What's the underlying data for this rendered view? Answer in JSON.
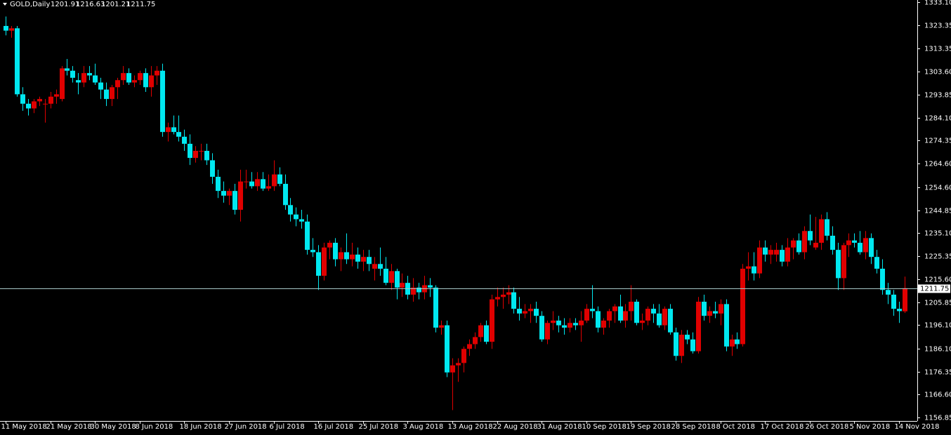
{
  "chart_data": {
    "type": "candlestick",
    "title": "GOLD,Daily",
    "up_color": "#e00000",
    "down_color": "#00e8f0",
    "price_line_color": "#a8c8c8",
    "ylim": [
      1334.0,
      1156.0
    ],
    "yticks": [
      {
        "value": 1333.1,
        "label": "1333.10"
      },
      1323.35,
      1313.35,
      {
        "value": 1303.6,
        "label": "1303.60"
      },
      1293.85,
      {
        "value": 1284.1,
        "label": "1284.10"
      },
      1274.35,
      {
        "value": 1264.6,
        "label": "1264.60"
      },
      {
        "value": 1254.6,
        "label": "1254.60"
      },
      1244.85,
      {
        "value": 1235.1,
        "label": "1235.10"
      },
      1225.35,
      {
        "value": 1215.6,
        "label": "1215.60"
      },
      1205.85,
      {
        "value": 1196.1,
        "label": "1196.10"
      },
      {
        "value": 1186.1,
        "label": "1186.10"
      },
      1176.35,
      {
        "value": 1166.6,
        "label": "1166.60"
      },
      1156.85
    ],
    "categories": [
      "11 May 2018",
      null,
      null,
      null,
      null,
      null,
      null,
      null,
      "21 May 2018",
      null,
      null,
      null,
      null,
      null,
      null,
      null,
      "30 May 2018",
      null,
      null,
      null,
      null,
      null,
      null,
      null,
      "8 Jun 2018",
      null,
      null,
      null,
      null,
      null,
      null,
      null,
      "18 Jun 2018",
      null,
      null,
      null,
      null,
      null,
      null,
      null,
      "27 Jun 2018",
      null,
      null,
      null,
      null,
      null,
      null,
      null,
      "6 Jul 2018",
      null,
      null,
      null,
      null,
      null,
      null,
      null,
      "16 Jul 2018",
      null,
      null,
      null,
      null,
      null,
      null,
      null,
      "25 Jul 2018",
      null,
      null,
      null,
      null,
      null,
      null,
      null,
      "3 Aug 2018",
      null,
      null,
      null,
      null,
      null,
      null,
      null,
      "13 Aug 2018",
      null,
      null,
      null,
      null,
      null,
      null,
      null,
      "22 Aug 2018",
      null,
      null,
      null,
      null,
      null,
      null,
      null,
      "31 Aug 2018",
      null,
      null,
      null,
      null,
      null,
      null,
      null,
      "10 Sep 2018",
      null,
      null,
      null,
      null,
      null,
      null,
      null,
      "19 Sep 2018",
      null,
      null,
      null,
      null,
      null,
      null,
      null,
      "28 Sep 2018",
      null,
      null,
      null,
      null,
      null,
      null,
      null,
      "8 Oct 2018",
      null,
      null,
      null,
      null,
      null,
      null,
      null,
      "17 Oct 2018",
      null,
      null,
      null,
      null,
      null,
      null,
      null,
      "26 Oct 2018",
      null,
      null,
      null,
      null,
      null,
      null,
      null,
      "5 Nov 2018",
      null,
      null,
      null,
      null,
      null,
      null,
      null,
      "14 Nov 2018",
      null
    ],
    "ohlc": [
      [
        1323,
        1327,
        1319,
        1321
      ],
      [
        1321,
        1323,
        1318,
        1322
      ],
      [
        1322,
        1323,
        1293,
        1294
      ],
      [
        1294,
        1297,
        1287,
        1290
      ],
      [
        1290,
        1292,
        1285,
        1288
      ],
      [
        1288,
        1292,
        1286,
        1291
      ],
      [
        1291,
        1293,
        1289,
        1292
      ],
      [
        1290,
        1292,
        1282,
        1290
      ],
      [
        1290,
        1295,
        1288,
        1293
      ],
      [
        1293,
        1296,
        1290,
        1294
      ],
      [
        1292,
        1306,
        1291,
        1305
      ],
      [
        1305,
        1309,
        1302,
        1304
      ],
      [
        1304,
        1306,
        1299,
        1301
      ],
      [
        1300,
        1303,
        1294,
        1299
      ],
      [
        1299,
        1306,
        1297,
        1303
      ],
      [
        1303,
        1306,
        1300,
        1302
      ],
      [
        1302,
        1307,
        1298,
        1299
      ],
      [
        1299,
        1301,
        1292,
        1296
      ],
      [
        1296,
        1299,
        1289,
        1292
      ],
      [
        1292,
        1298,
        1289,
        1297
      ],
      [
        1297,
        1301,
        1292,
        1300
      ],
      [
        1300,
        1306,
        1298,
        1303
      ],
      [
        1303,
        1305,
        1298,
        1299
      ],
      [
        1299,
        1302,
        1297,
        1300
      ],
      [
        1300,
        1304,
        1298,
        1303
      ],
      [
        1303,
        1305,
        1295,
        1297
      ],
      [
        1297,
        1306,
        1293,
        1302
      ],
      [
        1302,
        1306,
        1298,
        1304
      ],
      [
        1304,
        1307,
        1276,
        1278
      ],
      [
        1278,
        1282,
        1274,
        1280
      ],
      [
        1280,
        1285,
        1277,
        1278
      ],
      [
        1278,
        1285,
        1274,
        1276
      ],
      [
        1276,
        1279,
        1270,
        1273
      ],
      [
        1273,
        1277,
        1264,
        1267
      ],
      [
        1267,
        1272,
        1265,
        1270
      ],
      [
        1270,
        1273,
        1266,
        1270
      ],
      [
        1270,
        1273,
        1264,
        1266
      ],
      [
        1266,
        1269,
        1256,
        1259
      ],
      [
        1259,
        1262,
        1250,
        1253
      ],
      [
        1253,
        1257,
        1248,
        1251
      ],
      [
        1251,
        1254,
        1247,
        1253
      ],
      [
        1253,
        1256,
        1243,
        1245
      ],
      [
        1245,
        1262,
        1240,
        1257
      ],
      [
        1257,
        1262,
        1254,
        1257
      ],
      [
        1257,
        1261,
        1254,
        1255
      ],
      [
        1255,
        1261,
        1253,
        1258
      ],
      [
        1258,
        1261,
        1253,
        1254
      ],
      [
        1254,
        1260,
        1253,
        1255
      ],
      [
        1255,
        1266,
        1253,
        1260
      ],
      [
        1260,
        1263,
        1255,
        1256
      ],
      [
        1256,
        1260,
        1245,
        1247
      ],
      [
        1247,
        1250,
        1240,
        1243
      ],
      [
        1243,
        1246,
        1238,
        1241
      ],
      [
        1241,
        1245,
        1237,
        1240
      ],
      [
        1240,
        1243,
        1226,
        1228
      ],
      [
        1228,
        1233,
        1225,
        1227
      ],
      [
        1227,
        1230,
        1211,
        1217
      ],
      [
        1217,
        1231,
        1215,
        1229
      ],
      [
        1229,
        1232,
        1224,
        1231
      ],
      [
        1231,
        1233,
        1221,
        1224
      ],
      [
        1224,
        1229,
        1219,
        1227
      ],
      [
        1227,
        1235,
        1222,
        1224
      ],
      [
        1224,
        1231,
        1221,
        1226
      ],
      [
        1226,
        1229,
        1220,
        1223
      ],
      [
        1223,
        1228,
        1219,
        1225
      ],
      [
        1225,
        1228,
        1219,
        1222
      ],
      [
        1220,
        1225,
        1215,
        1222
      ],
      [
        1222,
        1229,
        1217,
        1220
      ],
      [
        1220,
        1225,
        1213,
        1214
      ],
      [
        1214,
        1222,
        1211,
        1219
      ],
      [
        1219,
        1220,
        1207,
        1212
      ],
      [
        1212,
        1218,
        1208,
        1214
      ],
      [
        1214,
        1217,
        1207,
        1209
      ],
      [
        1209,
        1216,
        1206,
        1212
      ],
      [
        1212,
        1214,
        1207,
        1210
      ],
      [
        1210,
        1217,
        1207,
        1213
      ],
      [
        1213,
        1216,
        1208,
        1212
      ],
      [
        1212,
        1213,
        1193,
        1195
      ],
      [
        1195,
        1198,
        1192,
        1196
      ],
      [
        1196,
        1198,
        1174,
        1176
      ],
      [
        1176,
        1182,
        1160,
        1179
      ],
      [
        1179,
        1182,
        1172,
        1180
      ],
      [
        1180,
        1187,
        1176,
        1186
      ],
      [
        1186,
        1190,
        1183,
        1188
      ],
      [
        1188,
        1193,
        1186,
        1191
      ],
      [
        1191,
        1197,
        1189,
        1196
      ],
      [
        1196,
        1198,
        1188,
        1189
      ],
      [
        1189,
        1209,
        1186,
        1207
      ],
      [
        1207,
        1212,
        1204,
        1208
      ],
      [
        1208,
        1212,
        1203,
        1209
      ],
      [
        1209,
        1213,
        1205,
        1210
      ],
      [
        1210,
        1212,
        1201,
        1203
      ],
      [
        1203,
        1208,
        1198,
        1201
      ],
      [
        1201,
        1205,
        1199,
        1202
      ],
      [
        1202,
        1205,
        1197,
        1203
      ],
      [
        1203,
        1206,
        1197,
        1200
      ],
      [
        1200,
        1202,
        1189,
        1190
      ],
      [
        1190,
        1198,
        1188,
        1197
      ],
      [
        1197,
        1202,
        1194,
        1198
      ],
      [
        1198,
        1200,
        1193,
        1196
      ],
      [
        1196,
        1199,
        1192,
        1195
      ],
      [
        1195,
        1199,
        1193,
        1197
      ],
      [
        1197,
        1199,
        1194,
        1196
      ],
      [
        1196,
        1202,
        1189,
        1198
      ],
      [
        1198,
        1205,
        1197,
        1203
      ],
      [
        1203,
        1213,
        1199,
        1202
      ],
      [
        1202,
        1204,
        1193,
        1195
      ],
      [
        1195,
        1199,
        1192,
        1198
      ],
      [
        1198,
        1203,
        1195,
        1202
      ],
      [
        1202,
        1205,
        1197,
        1204
      ],
      [
        1204,
        1209,
        1197,
        1198
      ],
      [
        1198,
        1205,
        1195,
        1202
      ],
      [
        1202,
        1213,
        1198,
        1206
      ],
      [
        1206,
        1207,
        1196,
        1197
      ],
      [
        1197,
        1201,
        1194,
        1198
      ],
      [
        1198,
        1204,
        1196,
        1203
      ],
      [
        1203,
        1205,
        1197,
        1201
      ],
      [
        1201,
        1205,
        1195,
        1196
      ],
      [
        1196,
        1204,
        1194,
        1203
      ],
      [
        1203,
        1205,
        1192,
        1193
      ],
      [
        1193,
        1195,
        1181,
        1183
      ],
      [
        1183,
        1194,
        1180,
        1192
      ],
      [
        1192,
        1194,
        1188,
        1190
      ],
      [
        1190,
        1193,
        1184,
        1185
      ],
      [
        1185,
        1208,
        1184,
        1206
      ],
      [
        1206,
        1209,
        1198,
        1200
      ],
      [
        1200,
        1204,
        1197,
        1202
      ],
      [
        1202,
        1206,
        1199,
        1201
      ],
      [
        1201,
        1207,
        1196,
        1205
      ],
      [
        1205,
        1207,
        1185,
        1187
      ],
      [
        1187,
        1192,
        1183,
        1190
      ],
      [
        1190,
        1193,
        1186,
        1188
      ],
      [
        1188,
        1222,
        1187,
        1220
      ],
      [
        1220,
        1227,
        1215,
        1221
      ],
      [
        1221,
        1227,
        1215,
        1218
      ],
      [
        1218,
        1232,
        1216,
        1229
      ],
      [
        1229,
        1232,
        1223,
        1226
      ],
      [
        1226,
        1230,
        1222,
        1228
      ],
      [
        1226,
        1231,
        1223,
        1228
      ],
      [
        1228,
        1230,
        1221,
        1223
      ],
      [
        1223,
        1233,
        1221,
        1229
      ],
      [
        1229,
        1233,
        1224,
        1232
      ],
      [
        1232,
        1235,
        1226,
        1227
      ],
      [
        1227,
        1238,
        1224,
        1236
      ],
      [
        1236,
        1243,
        1230,
        1232
      ],
      [
        1229,
        1242,
        1228,
        1231
      ],
      [
        1231,
        1243,
        1228,
        1241
      ],
      [
        1241,
        1244,
        1232,
        1234
      ],
      [
        1234,
        1238,
        1226,
        1228
      ],
      [
        1228,
        1231,
        1211,
        1216
      ],
      [
        1216,
        1231,
        1211,
        1230
      ],
      [
        1230,
        1235,
        1225,
        1232
      ],
      [
        1232,
        1235,
        1229,
        1231
      ],
      [
        1231,
        1236,
        1226,
        1227
      ],
      [
        1227,
        1236,
        1224,
        1233
      ],
      [
        1233,
        1235,
        1222,
        1225
      ],
      [
        1225,
        1228,
        1218,
        1220
      ],
      [
        1220,
        1224,
        1209,
        1211
      ],
      [
        1211,
        1214,
        1205,
        1209
      ],
      [
        1209,
        1211,
        1200,
        1203
      ],
      [
        1203,
        1206,
        1197,
        1202
      ],
      [
        1201.91,
        1216.63,
        1201.21,
        1211.75
      ]
    ]
  }
}
